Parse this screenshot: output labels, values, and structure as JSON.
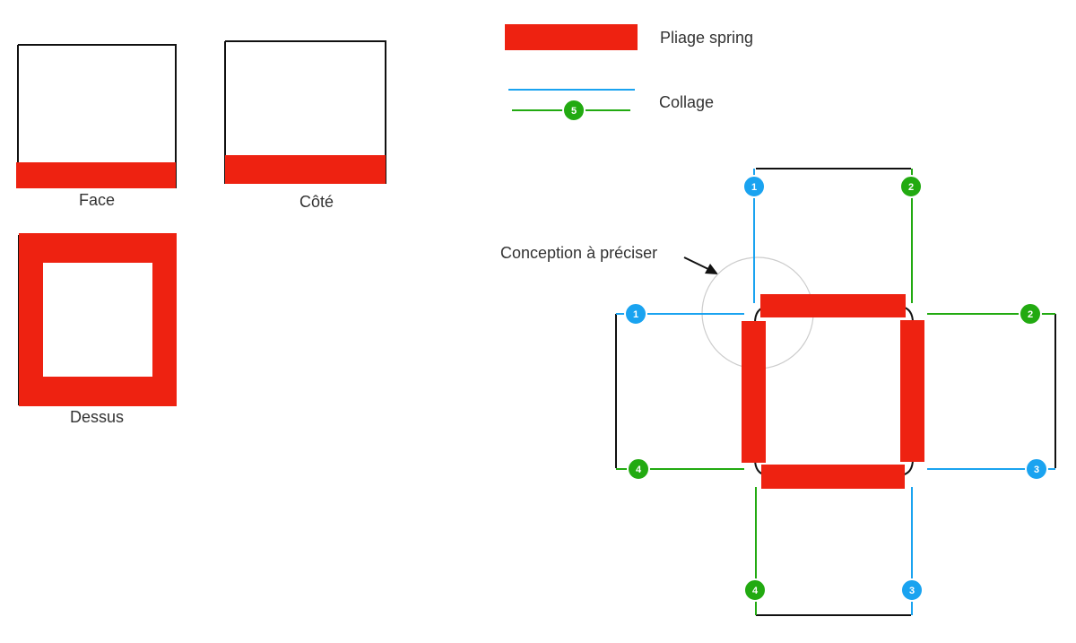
{
  "views": {
    "face": "Face",
    "side": "Côté",
    "top": "Dessus"
  },
  "legend": {
    "fold": "Pliage spring",
    "glue": "Collage",
    "glue_badge": "5"
  },
  "annotation": "Conception à préciser",
  "badges": {
    "b1_top": "1",
    "b2_top": "2",
    "b1_left": "1",
    "b2_right": "2",
    "b4_left": "4",
    "b3_right": "3",
    "b4_bottom": "4",
    "b3_bottom": "3"
  },
  "colors": {
    "fold": "#ee2211",
    "glue_blue": "#1aa3f0",
    "glue_green": "#22aa11",
    "outline": "#111111",
    "circle": "#cccccc"
  }
}
